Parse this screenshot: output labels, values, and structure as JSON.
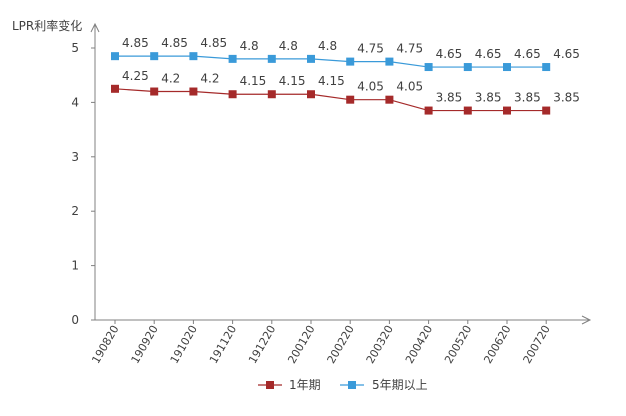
{
  "chart_data": {
    "type": "line",
    "title": "",
    "ylabel": "LPR利率变化",
    "xlabel": "",
    "ylim": [
      0,
      5
    ],
    "yticks": [
      "0",
      "1",
      "2",
      "3",
      "4",
      "5"
    ],
    "categories": [
      "190820",
      "190920",
      "191020",
      "191120",
      "191220",
      "200120",
      "200220",
      "200320",
      "200420",
      "200520",
      "200620",
      "200720"
    ],
    "series": [
      {
        "name": "1年期",
        "color": "#a52a2a",
        "values": [
          4.25,
          4.2,
          4.2,
          4.15,
          4.15,
          4.15,
          4.05,
          4.05,
          3.85,
          3.85,
          3.85,
          3.85
        ],
        "labels": [
          "4.25",
          "4.2",
          "4.2",
          "4.15",
          "4.15",
          "4.15",
          "4.05",
          "4.05",
          "3.85",
          "3.85",
          "3.85",
          "3.85"
        ]
      },
      {
        "name": "5年期以上",
        "color": "#3a9ad9",
        "values": [
          4.85,
          4.85,
          4.85,
          4.8,
          4.8,
          4.8,
          4.75,
          4.75,
          4.65,
          4.65,
          4.65,
          4.65
        ],
        "labels": [
          "4.85",
          "4.85",
          "4.85",
          "4.8",
          "4.8",
          "4.8",
          "4.75",
          "4.75",
          "4.65",
          "4.65",
          "4.65",
          "4.65"
        ]
      }
    ],
    "legend": "bottom"
  }
}
